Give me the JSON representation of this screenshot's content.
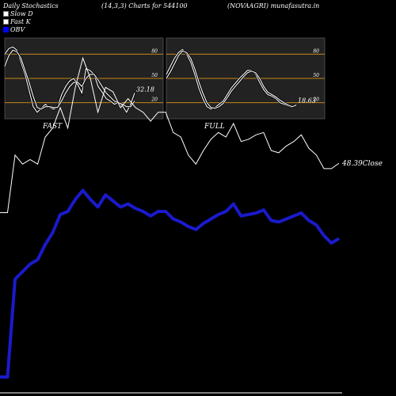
{
  "header": {
    "left": "Daily Stochastics",
    "center": "(14,3,3) Charts for 544100",
    "right": "(NOVAAGRI) munafasutra.in"
  },
  "legend": [
    {
      "label": "Slow  D",
      "color": "#ffffff"
    },
    {
      "label": "Fast  K",
      "color": "#ffffff"
    },
    {
      "label": "OBV",
      "color": "#0000ff"
    }
  ],
  "colors": {
    "background": "#000000",
    "panel": "#222222",
    "level_line": "#c8841a",
    "price_line": "#ffffff",
    "obv_line": "#1a1acc"
  },
  "chart_data": [
    {
      "type": "line",
      "title": "FAST",
      "ylim": [
        0,
        100
      ],
      "levels": [
        20,
        50,
        80
      ],
      "level_labels": [
        "20",
        "50",
        "80"
      ],
      "last_value_label": "32.18",
      "series": [
        {
          "values": [
            80,
            87,
            89,
            85,
            70,
            55,
            35,
            15,
            8,
            13,
            18,
            14,
            12,
            14,
            30,
            40,
            47,
            50,
            42,
            32,
            62,
            60,
            55,
            40,
            33,
            25,
            22,
            18,
            20,
            16,
            8,
            18,
            32
          ]
        },
        {
          "values": [
            65,
            78,
            85,
            83,
            75,
            60,
            45,
            28,
            14,
            12,
            15,
            15,
            14,
            14,
            22,
            32,
            40,
            45,
            45,
            40,
            50,
            55,
            55,
            48,
            40,
            32,
            27,
            22,
            20,
            18,
            15,
            15,
            22
          ]
        }
      ]
    },
    {
      "type": "line",
      "title": "FULL",
      "ylim": [
        0,
        100
      ],
      "levels": [
        20,
        50,
        80
      ],
      "level_labels": [
        "20",
        "50",
        "80"
      ],
      "last_value_label": "18.63",
      "series": [
        {
          "values": [
            55,
            65,
            75,
            82,
            86,
            80,
            70,
            55,
            38,
            25,
            15,
            12,
            14,
            18,
            22,
            30,
            38,
            44,
            50,
            55,
            60,
            60,
            55,
            45,
            36,
            30,
            28,
            25,
            20,
            18,
            16,
            14,
            18
          ]
        },
        {
          "values": [
            50,
            58,
            68,
            78,
            84,
            82,
            75,
            62,
            46,
            32,
            20,
            14,
            13,
            15,
            19,
            26,
            34,
            40,
            46,
            52,
            57,
            59,
            57,
            50,
            40,
            33,
            30,
            27,
            23,
            20,
            17,
            15,
            17
          ]
        }
      ]
    },
    {
      "type": "line",
      "title": "",
      "last_value_label": "48.39Close",
      "series": [
        {
          "values": [
            26.5,
            26.5,
            52,
            48,
            50,
            48,
            60,
            64,
            73,
            64,
            82,
            95,
            86,
            71,
            82,
            80,
            73,
            77,
            73,
            71,
            67,
            71,
            71,
            62,
            60,
            52,
            48,
            54,
            59,
            62,
            60,
            66,
            58,
            59,
            61,
            62,
            54,
            53,
            56,
            58,
            61,
            55,
            52,
            46,
            46,
            48.4
          ]
        },
        {
          "values": [
            0,
            0,
            65,
            70,
            75,
            78,
            88,
            96,
            108,
            110,
            118,
            124,
            118,
            113,
            121,
            117,
            113,
            115,
            112,
            110,
            107,
            110,
            110,
            105,
            103,
            100,
            98,
            102,
            105,
            108,
            110,
            115,
            107,
            108,
            109,
            111,
            104,
            103,
            105,
            107,
            109,
            104,
            101,
            94,
            89,
            92
          ]
        }
      ]
    }
  ]
}
